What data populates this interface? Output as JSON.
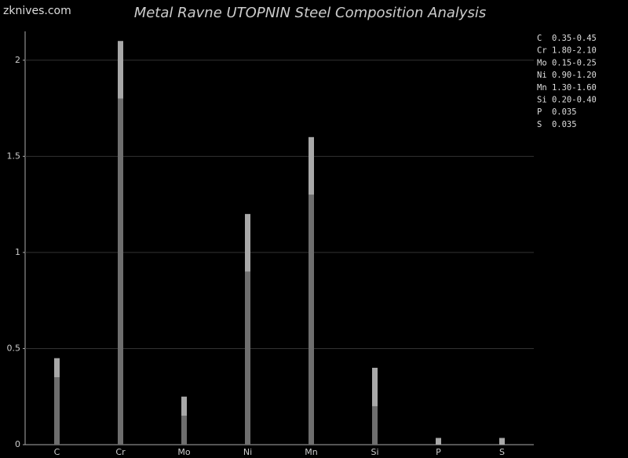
{
  "chart_data": {
    "type": "range_bar",
    "title": "Metal Ravne UTOPNIN Steel Composition Analysis",
    "watermark": "zknives.com",
    "categories": [
      "C",
      "Cr",
      "Mo",
      "Ni",
      "Mn",
      "Si",
      "P",
      "S"
    ],
    "min": [
      0.35,
      1.8,
      0.15,
      0.9,
      1.3,
      0.2,
      null,
      null
    ],
    "max": [
      0.45,
      2.1,
      0.25,
      1.2,
      1.6,
      0.4,
      0.035,
      0.035
    ],
    "min_color": "#6e6e6e",
    "max_color": "#a8a8a8",
    "legend": [
      "C  0.35-0.45",
      "Cr 1.80-2.10",
      "Mo 0.15-0.25",
      "Ni 0.90-1.20",
      "Mn 1.30-1.60",
      "Si 0.20-0.40",
      "P  0.035",
      "S  0.035"
    ],
    "ylim": [
      0,
      2.15
    ],
    "yticks": [
      0,
      0.5,
      1,
      1.5,
      2
    ],
    "grid": true
  }
}
